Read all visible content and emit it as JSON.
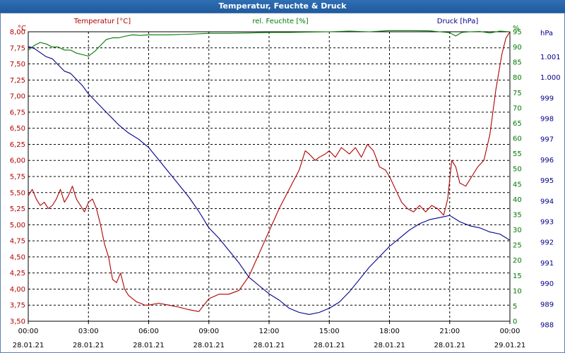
{
  "window_title": "Temperatur, Feuchte & Druck",
  "chart_data": {
    "type": "line",
    "title": "Temperatur, Feuchte & Druck",
    "grid": true,
    "x_ticks": [
      {
        "time": "00:00",
        "date": "28.01.21"
      },
      {
        "time": "03:00",
        "date": "28.01.21"
      },
      {
        "time": "06:00",
        "date": "28.01.21"
      },
      {
        "time": "09:00",
        "date": "28.01.21"
      },
      {
        "time": "12:00",
        "date": "28.01.21"
      },
      {
        "time": "15:00",
        "date": "28.01.21"
      },
      {
        "time": "18:00",
        "date": "28.01.21"
      },
      {
        "time": "21:00",
        "date": "28.01.21"
      },
      {
        "time": "00:00",
        "date": "29.01.21"
      }
    ],
    "axes": {
      "temperature": {
        "label": "Temperatur [°C]",
        "unit": "°C",
        "min": 3.5,
        "max": 8.0,
        "color": "#b00000",
        "ticks": [
          "3,50",
          "3,75",
          "4,00",
          "4,25",
          "4,50",
          "4,75",
          "5,00",
          "5,25",
          "5,50",
          "5,75",
          "6,00",
          "6,25",
          "6,50",
          "6,75",
          "7,00",
          "7,25",
          "7,50",
          "7,75",
          "8,00"
        ]
      },
      "humidity": {
        "label": "rel. Feuchte [%]",
        "unit": "%",
        "min": 0,
        "max": 95,
        "color": "#007a00",
        "ticks": [
          "0",
          "5",
          "10",
          "15",
          "20",
          "25",
          "30",
          "35",
          "40",
          "45",
          "50",
          "55",
          "60",
          "65",
          "70",
          "75",
          "80",
          "85",
          "90",
          "95"
        ],
        "top_unit_label": "%"
      },
      "pressure": {
        "label": "Druck [hPa]",
        "unit": "hPa",
        "color": "#00008b",
        "ticks": [
          "988",
          "989",
          "990",
          "991",
          "992",
          "993",
          "994",
          "995",
          "996",
          "997",
          "998",
          "999",
          "1.000",
          "1.001"
        ],
        "top_unit_label": "hPa"
      }
    },
    "series": [
      {
        "name": "Temperatur [°C]",
        "axis": "temperature",
        "color": "#b00000",
        "x": [
          0,
          0.2,
          0.4,
          0.6,
          0.8,
          1.0,
          1.2,
          1.4,
          1.6,
          1.8,
          2.0,
          2.2,
          2.4,
          2.6,
          2.8,
          3.0,
          3.2,
          3.4,
          3.6,
          3.8,
          4.0,
          4.2,
          4.4,
          4.6,
          4.8,
          5.0,
          5.2,
          5.4,
          5.6,
          5.8,
          6.0,
          6.5,
          7.0,
          7.5,
          8.0,
          8.5,
          9.0,
          9.5,
          10.0,
          10.5,
          11.0,
          11.5,
          12.0,
          12.5,
          13.0,
          13.5,
          13.8,
          14.0,
          14.3,
          14.5,
          14.8,
          15.0,
          15.3,
          15.6,
          16.0,
          16.3,
          16.6,
          16.9,
          17.2,
          17.5,
          17.8,
          18.0,
          18.3,
          18.6,
          18.9,
          19.2,
          19.5,
          19.8,
          20.1,
          20.4,
          20.7,
          20.9,
          21.1,
          21.3,
          21.5,
          21.8,
          22.1,
          22.4,
          22.7,
          23.0,
          23.3,
          23.6,
          23.8,
          24.0
        ],
        "y": [
          5.45,
          5.55,
          5.4,
          5.3,
          5.35,
          5.25,
          5.3,
          5.4,
          5.55,
          5.35,
          5.45,
          5.6,
          5.4,
          5.3,
          5.2,
          5.35,
          5.4,
          5.25,
          5.0,
          4.7,
          4.5,
          4.15,
          4.1,
          4.25,
          4.0,
          3.9,
          3.85,
          3.8,
          3.78,
          3.75,
          3.75,
          3.78,
          3.75,
          3.72,
          3.68,
          3.65,
          3.85,
          3.92,
          3.92,
          3.98,
          4.2,
          4.55,
          4.9,
          5.25,
          5.55,
          5.85,
          6.15,
          6.1,
          6.0,
          6.05,
          6.1,
          6.15,
          6.05,
          6.2,
          6.1,
          6.2,
          6.05,
          6.25,
          6.15,
          5.9,
          5.85,
          5.75,
          5.55,
          5.35,
          5.25,
          5.2,
          5.3,
          5.2,
          5.3,
          5.25,
          5.15,
          5.4,
          6.0,
          5.9,
          5.65,
          5.6,
          5.75,
          5.9,
          6.0,
          6.4,
          7.1,
          7.65,
          7.9,
          8.0
        ]
      },
      {
        "name": "rel. Feuchte [%]",
        "axis": "humidity",
        "color": "#007a00",
        "x": [
          0,
          0.3,
          0.6,
          0.9,
          1.2,
          1.5,
          1.8,
          2.1,
          2.4,
          2.7,
          3.0,
          3.3,
          3.6,
          3.9,
          4.2,
          4.5,
          4.8,
          5.2,
          5.6,
          6.0,
          7.0,
          8.0,
          9.0,
          10.0,
          11.0,
          12.0,
          13.0,
          14.0,
          15.0,
          16.0,
          17.0,
          18.0,
          19.0,
          20.0,
          20.5,
          21.0,
          21.3,
          21.6,
          22.0,
          22.5,
          23.0,
          23.5,
          24.0
        ],
        "y": [
          89,
          90.5,
          91.5,
          91,
          90,
          90,
          89,
          89,
          88,
          87.5,
          87,
          88.5,
          90.5,
          92.5,
          93,
          93,
          93.5,
          94,
          93.8,
          94,
          94,
          94.2,
          94.5,
          94.5,
          94.6,
          94.8,
          94.8,
          94.9,
          95,
          95.2,
          95,
          95.4,
          95.4,
          95.3,
          95,
          94.7,
          93.6,
          94.8,
          95,
          95.1,
          94.6,
          95.2,
          95
        ]
      },
      {
        "name": "Druck [hPa]",
        "axis": "pressure",
        "color": "#00008b",
        "x": [
          0,
          0.3,
          0.6,
          0.9,
          1.2,
          1.5,
          1.8,
          2.1,
          2.4,
          2.7,
          3.0,
          3.5,
          4.0,
          4.5,
          5.0,
          5.5,
          6.0,
          6.5,
          7.0,
          7.5,
          8.0,
          8.5,
          9.0,
          9.5,
          10.0,
          10.5,
          11.0,
          11.5,
          12.0,
          12.5,
          13.0,
          13.5,
          14.0,
          14.5,
          15.0,
          15.5,
          16.0,
          16.5,
          17.0,
          17.5,
          18.0,
          18.5,
          19.0,
          19.5,
          20.0,
          20.5,
          21.0,
          21.5,
          22.0,
          22.5,
          23.0,
          23.5,
          24.0
        ],
        "y": [
          1001.5,
          1001.4,
          1001.2,
          1001.0,
          1000.9,
          1000.6,
          1000.3,
          1000.2,
          999.9,
          999.6,
          999.2,
          998.7,
          998.2,
          997.7,
          997.3,
          997.0,
          996.6,
          996.0,
          995.4,
          994.8,
          994.2,
          993.5,
          992.7,
          992.2,
          991.6,
          991.0,
          990.3,
          989.9,
          989.5,
          989.2,
          988.8,
          988.6,
          988.5,
          988.6,
          988.8,
          989.1,
          989.6,
          990.2,
          990.8,
          991.3,
          991.8,
          992.2,
          992.6,
          992.9,
          993.1,
          993.2,
          993.3,
          993.0,
          992.8,
          992.7,
          992.5,
          992.4,
          992.1
        ]
      }
    ]
  }
}
